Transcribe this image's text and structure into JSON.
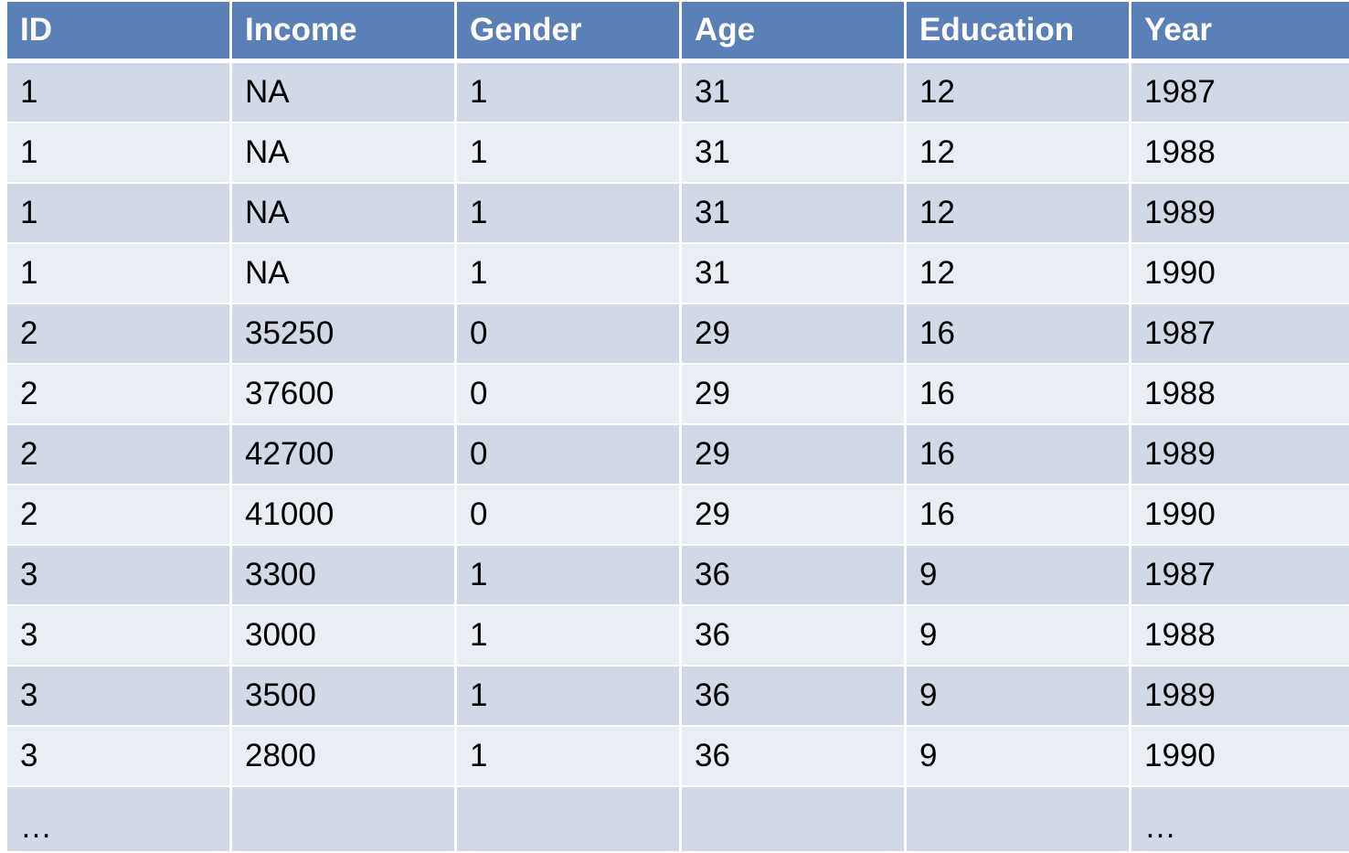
{
  "table": {
    "headers": [
      "ID",
      "Income",
      "Gender",
      "Age",
      "Education",
      "Year"
    ],
    "rows": [
      [
        "1",
        "NA",
        "1",
        "31",
        "12",
        "1987"
      ],
      [
        "1",
        "NA",
        "1",
        "31",
        "12",
        "1988"
      ],
      [
        "1",
        "NA",
        "1",
        "31",
        "12",
        "1989"
      ],
      [
        "1",
        "NA",
        "1",
        "31",
        "12",
        "1990"
      ],
      [
        "2",
        "35250",
        "0",
        "29",
        "16",
        "1987"
      ],
      [
        "2",
        "37600",
        "0",
        "29",
        "16",
        "1988"
      ],
      [
        "2",
        "42700",
        "0",
        "29",
        "16",
        "1989"
      ],
      [
        "2",
        "41000",
        "0",
        "29",
        "16",
        "1990"
      ],
      [
        "3",
        "3300",
        "1",
        "36",
        "9",
        "1987"
      ],
      [
        "3",
        "3000",
        "1",
        "36",
        "9",
        "1988"
      ],
      [
        "3",
        "3500",
        "1",
        "36",
        "9",
        "1989"
      ],
      [
        "3",
        "2800",
        "1",
        "36",
        "9",
        "1990"
      ],
      [
        "…",
        "",
        "",
        "",
        "",
        "…"
      ]
    ]
  },
  "colors": {
    "header": "#5a80b8",
    "row_odd": "#d1d9e7",
    "row_even": "#e9edf4"
  }
}
